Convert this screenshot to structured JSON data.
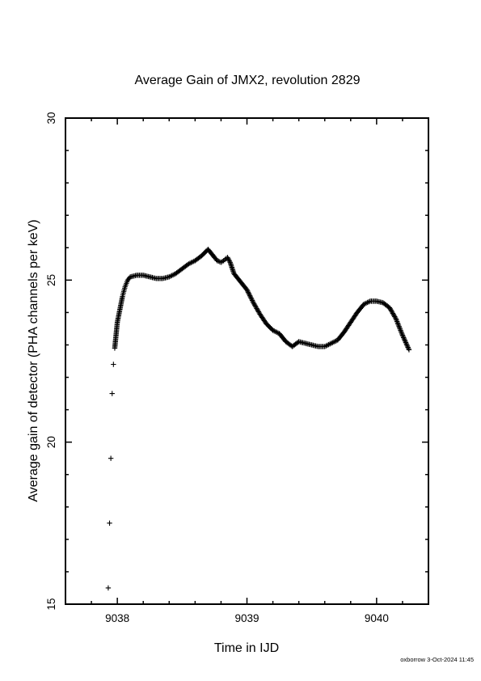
{
  "chart_data": {
    "type": "scatter",
    "title": "Average Gain of JMX2, revolution 2829",
    "xlabel": "Time in IJD",
    "ylabel": "Average gain of detector (PHA channels per keV)",
    "xlim": [
      9037.6,
      9040.4
    ],
    "ylim": [
      15,
      30
    ],
    "x_ticks": [
      9038,
      9039,
      9040
    ],
    "y_ticks": [
      15,
      20,
      25,
      30
    ],
    "marker": "+",
    "grid": false,
    "series": [
      {
        "color": "#000000",
        "x": [
          9037.93,
          9037.94,
          9037.95,
          9037.96,
          9037.97,
          9037.98,
          9037.985,
          9037.99,
          9037.995,
          9038.0,
          9038.01,
          9038.02,
          9038.03,
          9038.04,
          9038.05,
          9038.06,
          9038.07,
          9038.08,
          9038.1,
          9038.15,
          9038.2,
          9038.25,
          9038.3,
          9038.35,
          9038.4,
          9038.45,
          9038.5,
          9038.55,
          9038.6,
          9038.65,
          9038.7,
          9038.75,
          9038.77,
          9038.8,
          9038.82,
          9038.85,
          9038.87,
          9038.9,
          9038.95,
          9039.0,
          9039.05,
          9039.1,
          9039.15,
          9039.2,
          9039.25,
          9039.3,
          9039.35,
          9039.4,
          9039.45,
          9039.5,
          9039.55,
          9039.6,
          9039.65,
          9039.7,
          9039.75,
          9039.8,
          9039.85,
          9039.9,
          9039.95,
          9040.0,
          9040.05,
          9040.1,
          9040.15,
          9040.2,
          9040.25
        ],
        "y": [
          15.5,
          17.5,
          19.5,
          21.5,
          22.4,
          22.9,
          23.1,
          23.3,
          23.5,
          23.7,
          23.9,
          24.1,
          24.3,
          24.5,
          24.65,
          24.8,
          24.9,
          25.0,
          25.1,
          25.15,
          25.15,
          25.1,
          25.05,
          25.05,
          25.1,
          25.2,
          25.35,
          25.5,
          25.6,
          25.75,
          25.95,
          25.7,
          25.6,
          25.55,
          25.6,
          25.7,
          25.55,
          25.2,
          24.95,
          24.7,
          24.3,
          23.95,
          23.65,
          23.45,
          23.35,
          23.1,
          22.95,
          23.1,
          23.05,
          23.0,
          22.95,
          22.95,
          23.05,
          23.15,
          23.4,
          23.7,
          24.0,
          24.25,
          24.35,
          24.35,
          24.3,
          24.15,
          23.8,
          23.3,
          22.85
        ]
      }
    ]
  },
  "footer": {
    "stamp": "oxborrow  3-Oct-2024 11:45"
  }
}
